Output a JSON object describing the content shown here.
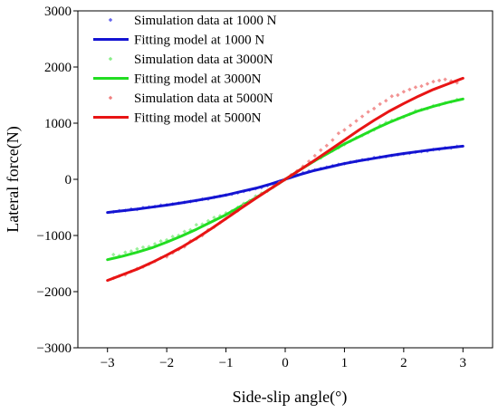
{
  "chart_data": {
    "type": "scatter",
    "title": "",
    "xlabel": "Side-slip angle(°)",
    "ylabel": "Lateral force(N)",
    "xlim": [
      -3.5,
      3.5
    ],
    "ylim": [
      -3000,
      3000
    ],
    "xticks": [
      -3,
      -2,
      -1,
      0,
      1,
      2,
      3
    ],
    "xtick_labels": [
      "−3",
      "−2",
      "−1",
      "0",
      "1",
      "2",
      "3"
    ],
    "yticks": [
      -3000,
      -2000,
      -1000,
      0,
      1000,
      2000,
      3000
    ],
    "ytick_labels": [
      "−3000",
      "−2000",
      "−1000",
      "0",
      "1000",
      "2000",
      "3000"
    ],
    "grid": false,
    "legend_position": "top-left",
    "series": [
      {
        "name": "Simulation data at 1000 N",
        "kind": "scatter",
        "color": "#6666ee",
        "x": [
          -2.9,
          -2.8,
          -2.7,
          -2.6,
          -2.5,
          -2.4,
          -2.3,
          -2.2,
          -2.1,
          -2.0,
          -1.9,
          -1.8,
          -1.7,
          -1.6,
          -1.5,
          -1.4,
          -1.3,
          -1.2,
          -1.1,
          -1.0,
          -0.9,
          -0.8,
          -0.7,
          -0.6,
          -0.5,
          -0.4,
          -0.3,
          -0.2,
          -0.1,
          0.0,
          0.1,
          0.2,
          0.3,
          0.4,
          0.5,
          0.6,
          0.7,
          0.8,
          0.9,
          1.0,
          1.1,
          1.2,
          1.3,
          1.4,
          1.5,
          1.6,
          1.7,
          1.8,
          1.9,
          2.0,
          2.1,
          2.2,
          2.3,
          2.4,
          2.5,
          2.6,
          2.7,
          2.8,
          2.9
        ],
        "y": [
          -580,
          -560,
          -555,
          -530,
          -535,
          -505,
          -495,
          -485,
          -460,
          -455,
          -440,
          -425,
          -410,
          -395,
          -380,
          -355,
          -350,
          -320,
          -300,
          -280,
          -265,
          -240,
          -215,
          -190,
          -165,
          -145,
          -110,
          -85,
          -40,
          0,
          40,
          80,
          115,
          145,
          165,
          190,
          215,
          240,
          265,
          280,
          305,
          320,
          345,
          355,
          385,
          395,
          405,
          425,
          440,
          455,
          465,
          485,
          495,
          505,
          530,
          535,
          560,
          560,
          585
        ]
      },
      {
        "name": "Fitting model at 1000 N",
        "kind": "line",
        "color": "#1414d2",
        "x": [
          -3.0,
          -2.75,
          -2.5,
          -2.25,
          -2.0,
          -1.75,
          -1.5,
          -1.25,
          -1.0,
          -0.75,
          -0.5,
          -0.25,
          0.0,
          0.25,
          0.5,
          0.75,
          1.0,
          1.25,
          1.5,
          1.75,
          2.0,
          2.25,
          2.5,
          2.75,
          3.0
        ],
        "y": [
          -590,
          -560,
          -530,
          -495,
          -460,
          -420,
          -375,
          -330,
          -280,
          -220,
          -160,
          -85,
          0,
          85,
          160,
          220,
          280,
          330,
          375,
          420,
          460,
          495,
          530,
          560,
          590
        ]
      },
      {
        "name": "Simulation data at 3000N",
        "kind": "scatter",
        "color": "#88ee88",
        "x": [
          -2.9,
          -2.8,
          -2.7,
          -2.6,
          -2.5,
          -2.4,
          -2.3,
          -2.2,
          -2.1,
          -2.0,
          -1.9,
          -1.8,
          -1.7,
          -1.6,
          -1.5,
          -1.4,
          -1.3,
          -1.2,
          -1.1,
          -1.0,
          -0.9,
          -0.8,
          -0.7,
          -0.6,
          -0.5,
          -0.4,
          -0.3,
          -0.2,
          -0.1,
          0.0,
          0.1,
          0.2,
          0.3,
          0.4,
          0.5,
          0.6,
          0.7,
          0.8,
          0.9,
          1.0,
          1.1,
          1.2,
          1.3,
          1.4,
          1.5,
          1.6,
          1.7,
          1.8,
          1.9,
          2.0,
          2.1,
          2.2,
          2.3,
          2.4,
          2.5,
          2.6,
          2.7,
          2.8,
          2.9
        ],
        "y": [
          -1340,
          -1360,
          -1300,
          -1280,
          -1240,
          -1210,
          -1200,
          -1150,
          -1100,
          -1080,
          -1020,
          -1000,
          -930,
          -900,
          -810,
          -800,
          -740,
          -680,
          -650,
          -600,
          -560,
          -500,
          -430,
          -380,
          -300,
          -250,
          -210,
          -140,
          -70,
          0,
          70,
          140,
          220,
          270,
          330,
          380,
          460,
          510,
          560,
          620,
          680,
          740,
          780,
          830,
          880,
          960,
          1010,
          1050,
          1080,
          1110,
          1160,
          1220,
          1240,
          1260,
          1310,
          1320,
          1360,
          1380,
          1420
        ]
      },
      {
        "name": "Fitting model at 3000N",
        "kind": "line",
        "color": "#22dd22",
        "x": [
          -3.0,
          -2.75,
          -2.5,
          -2.25,
          -2.0,
          -1.75,
          -1.5,
          -1.25,
          -1.0,
          -0.75,
          -0.5,
          -0.25,
          0.0,
          0.25,
          0.5,
          0.75,
          1.0,
          1.25,
          1.5,
          1.75,
          2.0,
          2.25,
          2.5,
          2.75,
          3.0
        ],
        "y": [
          -1430,
          -1370,
          -1300,
          -1220,
          -1120,
          -1010,
          -890,
          -760,
          -630,
          -480,
          -330,
          -170,
          0,
          170,
          330,
          480,
          630,
          760,
          890,
          1010,
          1120,
          1220,
          1300,
          1370,
          1430
        ]
      },
      {
        "name": "Simulation data at 5000N",
        "kind": "scatter",
        "color": "#f08080",
        "x": [
          -2.9,
          -2.8,
          -2.7,
          -2.6,
          -2.5,
          -2.4,
          -2.3,
          -2.2,
          -2.1,
          -2.0,
          -1.9,
          -1.8,
          -1.7,
          -1.6,
          -1.5,
          -1.4,
          -1.3,
          -1.2,
          -1.1,
          -1.0,
          -0.9,
          -0.8,
          -0.7,
          -0.6,
          -0.5,
          -0.4,
          -0.3,
          -0.2,
          -0.1,
          0.0,
          0.1,
          0.2,
          0.3,
          0.4,
          0.5,
          0.6,
          0.7,
          0.8,
          0.9,
          1.0,
          1.1,
          1.2,
          1.3,
          1.4,
          1.5,
          1.6,
          1.7,
          1.8,
          1.9,
          2.0,
          2.1,
          2.2,
          2.3,
          2.4,
          2.5,
          2.6,
          2.7,
          2.8,
          2.9
        ],
        "y": [
          -1760,
          -1720,
          -1700,
          -1640,
          -1590,
          -1560,
          -1510,
          -1460,
          -1400,
          -1380,
          -1310,
          -1250,
          -1200,
          -1100,
          -1060,
          -1000,
          -900,
          -850,
          -770,
          -700,
          -620,
          -560,
          -460,
          -400,
          -330,
          -260,
          -200,
          -130,
          -60,
          0,
          80,
          150,
          230,
          320,
          420,
          520,
          600,
          700,
          820,
          880,
          960,
          1040,
          1120,
          1200,
          1260,
          1340,
          1400,
          1480,
          1500,
          1560,
          1600,
          1640,
          1660,
          1700,
          1740,
          1760,
          1780,
          1750,
          1720
        ]
      },
      {
        "name": "Fitting model at 5000N",
        "kind": "line",
        "color": "#e81414",
        "x": [
          -3.0,
          -2.75,
          -2.5,
          -2.25,
          -2.0,
          -1.75,
          -1.5,
          -1.25,
          -1.0,
          -0.75,
          -0.5,
          -0.25,
          0.0,
          0.25,
          0.5,
          0.75,
          1.0,
          1.25,
          1.5,
          1.75,
          2.0,
          2.25,
          2.5,
          2.75,
          3.0
        ],
        "y": [
          -1800,
          -1700,
          -1600,
          -1480,
          -1350,
          -1210,
          -1050,
          -880,
          -700,
          -520,
          -340,
          -170,
          0,
          170,
          340,
          520,
          700,
          880,
          1050,
          1210,
          1350,
          1480,
          1600,
          1700,
          1800
        ]
      }
    ]
  }
}
